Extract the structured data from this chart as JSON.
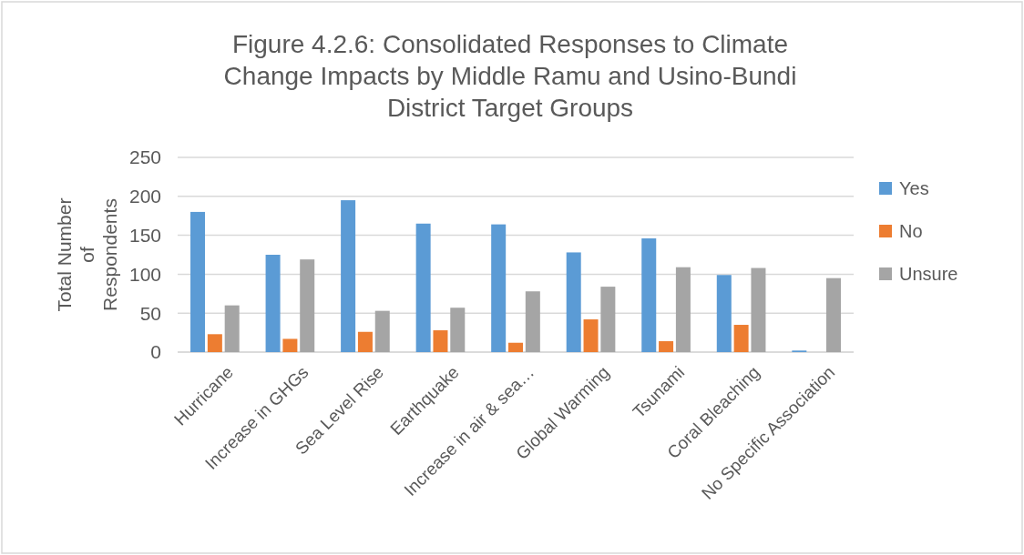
{
  "chart_data": {
    "type": "bar",
    "title": "Figure 4.2.6: Consolidated Responses to Climate Change Impacts by Middle Ramu and Usino-Bundi District Target Groups",
    "ylabel": "Total Number of Respondents",
    "categories": [
      "Hurricane",
      "Increase in GHGs",
      "Sea Level Rise",
      "Earthquake",
      "Increase in air & sea…",
      "Global Warming",
      "Tsunami",
      "Coral Bleaching",
      "No Specific Association"
    ],
    "series": [
      {
        "name": "Yes",
        "color": "#5b9bd5",
        "values": [
          180,
          125,
          195,
          165,
          164,
          128,
          146,
          99,
          2
        ]
      },
      {
        "name": "No",
        "color": "#ed7d31",
        "values": [
          23,
          17,
          26,
          28,
          12,
          42,
          14,
          35,
          0
        ]
      },
      {
        "name": "Unsure",
        "color": "#a5a5a5",
        "values": [
          60,
          119,
          53,
          57,
          78,
          84,
          109,
          108,
          95
        ]
      }
    ],
    "ylim": [
      0,
      250
    ],
    "yticks": [
      0,
      50,
      100,
      150,
      200,
      250
    ],
    "grid": "y",
    "legend": "right"
  }
}
